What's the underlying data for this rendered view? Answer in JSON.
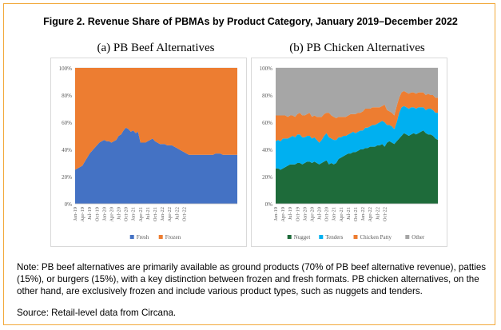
{
  "figure_title": "Figure 2. Revenue Share of PBMAs by Product Category, January 2019–December 2022",
  "note": "Note: PB beef alternatives are primarily available as ground products (70% of PB beef alternative revenue), patties (15%), or burgers (15%), with a key distinction between frozen and fresh formats. PB chicken alternatives, on the other hand, are exclusively frozen and include various product types, such as nuggets and tenders.",
  "source": "Source: Retail-level data from Circana.",
  "chart_data": [
    {
      "type": "area",
      "stacked": true,
      "title": "(a) PB Beef Alternatives",
      "x_tick_labels": [
        "Jan-19",
        "Apr-19",
        "Jul-19",
        "Oct-19",
        "Jan-20",
        "Apr-20",
        "Jul-20",
        "Oct-20",
        "Jan-21",
        "Apr-21",
        "Jul-21",
        "Oct-21",
        "Jan-22",
        "Apr-22",
        "Jul-22",
        "Oct-22"
      ],
      "y_tick_labels": [
        "0%",
        "20%",
        "40%",
        "60%",
        "80%",
        "100%"
      ],
      "ylim": [
        0,
        100
      ],
      "legend_position": "bottom",
      "series": [
        {
          "name": "Fresh",
          "color": "#4472c4",
          "values": [
            25,
            26,
            27,
            28,
            31,
            34,
            37,
            39,
            41,
            43,
            45,
            46,
            47,
            46,
            46,
            45,
            46,
            47,
            50,
            51,
            54,
            56,
            55,
            53,
            54,
            52,
            53,
            45,
            45,
            45,
            46,
            47,
            48,
            46,
            45,
            44,
            44,
            44,
            43,
            43,
            43,
            42,
            41,
            40,
            39,
            38,
            37,
            36,
            36,
            36,
            36,
            36,
            36,
            36,
            36,
            36,
            36,
            36,
            37,
            37,
            37,
            36,
            36,
            36,
            36,
            36,
            36,
            36
          ]
        },
        {
          "name": "Frozen",
          "color": "#ed7d31",
          "values": [
            75,
            74,
            73,
            72,
            69,
            66,
            63,
            61,
            59,
            57,
            55,
            54,
            53,
            54,
            54,
            55,
            54,
            53,
            50,
            49,
            46,
            44,
            45,
            47,
            46,
            48,
            47,
            55,
            55,
            55,
            54,
            53,
            52,
            54,
            55,
            56,
            56,
            56,
            57,
            57,
            57,
            58,
            59,
            60,
            61,
            62,
            63,
            64,
            64,
            64,
            64,
            64,
            64,
            64,
            64,
            64,
            64,
            64,
            63,
            63,
            63,
            64,
            64,
            64,
            64,
            64,
            64,
            64
          ]
        }
      ]
    },
    {
      "type": "area",
      "stacked": true,
      "title": "(b) PB Chicken Alternatives",
      "x_tick_labels": [
        "Jan-19",
        "Apr-19",
        "Jul-19",
        "Oct-19",
        "Jan-20",
        "Apr-20",
        "Jul-20",
        "Oct-20",
        "Jan-21",
        "Apr-21",
        "Jul-21",
        "Oct-21",
        "Jan-22",
        "Apr-22",
        "Jul-22",
        "Oct-22"
      ],
      "y_tick_labels": [
        "0%",
        "20%",
        "40%",
        "60%",
        "80%",
        "100%"
      ],
      "ylim": [
        0,
        100
      ],
      "legend_position": "bottom",
      "series": [
        {
          "name": "Nugget",
          "color": "#1e6b3a",
          "values": [
            26,
            26,
            25,
            26,
            27,
            28,
            29,
            29,
            29,
            30,
            30,
            29,
            30,
            31,
            31,
            30,
            31,
            30,
            29,
            30,
            31,
            32,
            29,
            30,
            29,
            30,
            33,
            34,
            35,
            36,
            37,
            37,
            38,
            38,
            39,
            40,
            40,
            41,
            41,
            42,
            42,
            42,
            43,
            43,
            44,
            42,
            45,
            46,
            45,
            44,
            46,
            48,
            50,
            52,
            51,
            50,
            51,
            52,
            51,
            52,
            53,
            54,
            52,
            51,
            51,
            50,
            48,
            47
          ]
        },
        {
          "name": "Tenders",
          "color": "#00b0f0",
          "values": [
            20,
            21,
            21,
            22,
            21,
            20,
            20,
            21,
            20,
            21,
            21,
            20,
            19,
            19,
            19,
            18,
            18,
            17,
            16,
            17,
            19,
            20,
            20,
            18,
            18,
            17,
            16,
            15,
            15,
            14,
            14,
            15,
            15,
            14,
            14,
            14,
            14,
            15,
            15,
            15,
            16,
            16,
            16,
            17,
            17,
            18,
            13,
            12,
            12,
            11,
            14,
            19,
            21,
            20,
            20,
            20,
            20,
            19,
            19,
            19,
            18,
            17,
            17,
            19,
            19,
            19,
            19,
            20
          ]
        },
        {
          "name": "Chicken Patty",
          "color": "#ed7d31",
          "values": [
            19,
            18,
            19,
            17,
            17,
            16,
            16,
            15,
            15,
            15,
            16,
            16,
            16,
            16,
            17,
            16,
            16,
            17,
            19,
            17,
            16,
            15,
            18,
            17,
            17,
            16,
            15,
            15,
            14,
            14,
            14,
            14,
            13,
            14,
            14,
            13,
            14,
            14,
            14,
            13,
            13,
            13,
            12,
            11,
            11,
            13,
            11,
            10,
            10,
            10,
            12,
            11,
            11,
            11,
            11,
            11,
            11,
            11,
            11,
            11,
            11,
            11,
            11,
            11,
            10,
            11,
            11,
            11
          ]
        },
        {
          "name": "Other",
          "color": "#a6a6a6",
          "values": [
            35,
            35,
            35,
            35,
            35,
            36,
            35,
            35,
            36,
            34,
            33,
            35,
            35,
            34,
            33,
            36,
            35,
            36,
            36,
            36,
            34,
            33,
            33,
            35,
            36,
            37,
            36,
            36,
            36,
            36,
            35,
            34,
            34,
            34,
            33,
            33,
            32,
            30,
            30,
            30,
            29,
            29,
            29,
            29,
            28,
            27,
            31,
            32,
            33,
            35,
            28,
            22,
            18,
            17,
            18,
            19,
            18,
            18,
            19,
            18,
            18,
            18,
            20,
            19,
            20,
            20,
            22,
            22
          ]
        }
      ]
    }
  ]
}
